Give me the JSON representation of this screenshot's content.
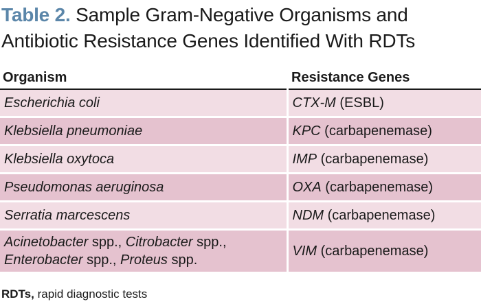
{
  "title": {
    "label": "Table 2.",
    "text": " Sample Gram-Negative Organisms and Antibiotic Resistance Genes Identified With RDTs"
  },
  "columns": [
    "Organism",
    "Resistance Genes"
  ],
  "rows": [
    {
      "organism": "Escherichia coli",
      "gene": "CTX-M",
      "desc": " (ESBL)"
    },
    {
      "organism": "Klebsiella pneumoniae",
      "gene": "KPC",
      "desc": " (carbapenemase)"
    },
    {
      "organism": "Klebsiella oxytoca",
      "gene": "IMP",
      "desc": " (carbapenemase)"
    },
    {
      "organism": "Pseudomonas aeruginosa",
      "gene": "OXA",
      "desc": " (carbapenemase)"
    },
    {
      "organism": "Serratia marcescens",
      "gene": "NDM",
      "desc": " (carbapenemase)"
    },
    {
      "organism_parts": [
        "Acinetobacter",
        " spp., ",
        "Citrobacter",
        " spp.,",
        "Enterobacter",
        " spp., ",
        "Proteus",
        " spp."
      ],
      "gene": "VIM",
      "desc": " (carbapenemase)"
    }
  ],
  "footnote": {
    "abbr": "RDTs,",
    "text": " rapid diagnostic tests"
  },
  "colors": {
    "title_label": "#5b86a9",
    "row_light": "#f2dde4",
    "row_dark": "#e5c2cf"
  }
}
